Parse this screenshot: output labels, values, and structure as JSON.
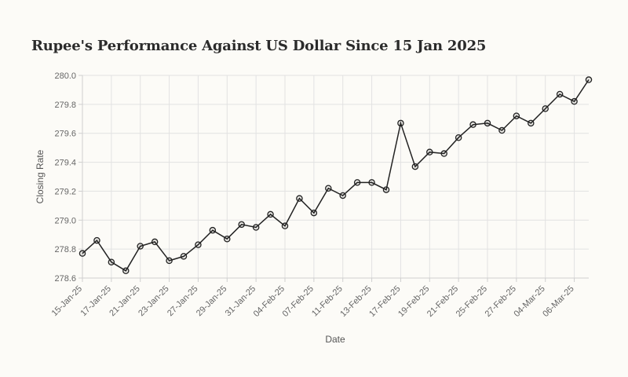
{
  "chart_data": {
    "type": "line",
    "title": "Rupee's Performance Against US Dollar Since 15 Jan 2025",
    "xlabel": "Date",
    "ylabel": "Closing Rate",
    "ylim": [
      278.6,
      280.0
    ],
    "yticks": [
      278.6,
      278.8,
      279.0,
      279.2,
      279.4,
      279.6,
      279.8,
      280.0
    ],
    "grid": true,
    "legend": "none",
    "line_color": "#222222",
    "x": [
      "15-Jan-25",
      "16-Jan-25",
      "17-Jan-25",
      "20-Jan-25",
      "21-Jan-25",
      "22-Jan-25",
      "23-Jan-25",
      "24-Jan-25",
      "27-Jan-25",
      "28-Jan-25",
      "29-Jan-25",
      "30-Jan-25",
      "31-Jan-25",
      "03-Feb-25",
      "04-Feb-25",
      "06-Feb-25",
      "07-Feb-25",
      "10-Feb-25",
      "11-Feb-25",
      "12-Feb-25",
      "13-Feb-25",
      "14-Feb-25",
      "17-Feb-25",
      "18-Feb-25",
      "19-Feb-25",
      "20-Feb-25",
      "21-Feb-25",
      "24-Feb-25",
      "25-Feb-25",
      "26-Feb-25",
      "27-Feb-25",
      "28-Feb-25",
      "04-Mar-25",
      "05-Mar-25",
      "06-Mar-25",
      "07-Mar-25"
    ],
    "xtick_labels": [
      "15-Jan-25",
      "17-Jan-25",
      "21-Jan-25",
      "23-Jan-25",
      "27-Jan-25",
      "29-Jan-25",
      "31-Jan-25",
      "04-Feb-25",
      "07-Feb-25",
      "11-Feb-25",
      "13-Feb-25",
      "17-Feb-25",
      "19-Feb-25",
      "21-Feb-25",
      "25-Feb-25",
      "27-Feb-25",
      "04-Mar-25",
      "06-Mar-25"
    ],
    "series": [
      {
        "values": [
          278.77,
          278.86,
          278.71,
          278.65,
          278.82,
          278.85,
          278.72,
          278.75,
          278.83,
          278.93,
          278.87,
          278.97,
          278.95,
          279.04,
          278.96,
          279.15,
          279.05,
          279.22,
          279.17,
          279.26,
          279.26,
          279.21,
          279.67,
          279.37,
          279.47,
          279.46,
          279.57,
          279.66,
          279.67,
          279.62,
          279.72,
          279.67,
          279.77,
          279.87,
          279.82,
          279.97
        ]
      }
    ]
  }
}
